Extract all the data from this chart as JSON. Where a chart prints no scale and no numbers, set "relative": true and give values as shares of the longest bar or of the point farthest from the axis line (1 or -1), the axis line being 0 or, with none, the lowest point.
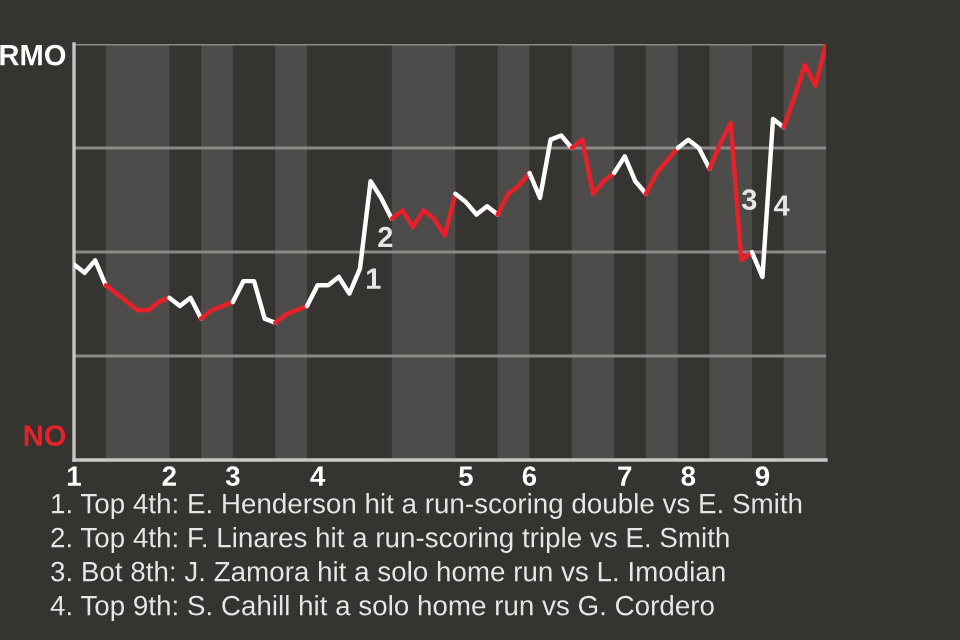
{
  "chart_data": {
    "type": "line",
    "relative": true,
    "grid": "y",
    "categories": [
      "1",
      null,
      null,
      null,
      null,
      null,
      null,
      null,
      null,
      "2",
      null,
      null,
      null,
      null,
      null,
      "3",
      null,
      null,
      null,
      null,
      null,
      null,
      null,
      "4",
      null,
      null,
      null,
      null,
      null,
      null,
      null,
      null,
      null,
      null,
      null,
      null,
      null,
      "5",
      null,
      null,
      null,
      null,
      null,
      "6",
      null,
      null,
      null,
      null,
      null,
      null,
      null,
      null,
      "7",
      null,
      null,
      null,
      null,
      null,
      "8",
      null,
      null,
      null,
      null,
      null,
      null,
      "9",
      null,
      null,
      null,
      null,
      null,
      null
    ],
    "series": [
      {
        "name": "RMO",
        "color": "#ffffff",
        "values": [
          0.47,
          0.45,
          0.48,
          0.42,
          null,
          null,
          null,
          null,
          null,
          null,
          null,
          null,
          null,
          null,
          null,
          null,
          null,
          null,
          null,
          null,
          null,
          null,
          null,
          null,
          null,
          null,
          null,
          null,
          null,
          null,
          null,
          null,
          null,
          null,
          null,
          null,
          null,
          null,
          null,
          null,
          null,
          null,
          null,
          null,
          null,
          null,
          null,
          null,
          null,
          null,
          null,
          null,
          null,
          null,
          null,
          null,
          null,
          null,
          null,
          null,
          null,
          null,
          null,
          null,
          null,
          null,
          null,
          null,
          null,
          null,
          null,
          null
        ]
      },
      {
        "name": "NO",
        "color": "#e8202a",
        "values": [
          null,
          null,
          null,
          0.42,
          0.4,
          0.38,
          0.36,
          0.36,
          0.38,
          0.39,
          null,
          null,
          null,
          null,
          null,
          null,
          null,
          null,
          null,
          null,
          null,
          null,
          null,
          null,
          null,
          null,
          null,
          null,
          null,
          null,
          null,
          null,
          null,
          null,
          null,
          null,
          null,
          null,
          null,
          null,
          null,
          null,
          null,
          null,
          null,
          null,
          null,
          null,
          null,
          null,
          null,
          null,
          null,
          null,
          null,
          null,
          null,
          null,
          null,
          null,
          null,
          null,
          null,
          null,
          null,
          null,
          null,
          null,
          null,
          null,
          null,
          null
        ]
      },
      {
        "color": "#ffffff",
        "values": [
          null,
          null,
          null,
          null,
          null,
          null,
          null,
          null,
          null,
          0.39,
          0.37,
          0.39,
          0.34,
          null,
          null,
          null,
          null,
          null,
          null,
          null,
          null,
          null,
          null,
          null,
          null,
          null,
          null,
          null,
          null,
          null,
          null,
          null,
          null,
          null,
          null,
          null,
          null,
          null,
          null,
          null,
          null,
          null,
          null,
          null,
          null,
          null,
          null,
          null,
          null,
          null,
          null,
          null,
          null,
          null,
          null,
          null,
          null,
          null,
          null,
          null,
          null,
          null,
          null,
          null,
          null,
          null,
          null,
          null,
          null,
          null,
          null,
          null
        ]
      },
      {
        "color": "#e8202a",
        "values": [
          null,
          null,
          null,
          null,
          null,
          null,
          null,
          null,
          null,
          null,
          null,
          null,
          0.34,
          0.36,
          0.37,
          0.38,
          null,
          null,
          null,
          null,
          null,
          null,
          null,
          null,
          null,
          null,
          null,
          null,
          null,
          null,
          null,
          null,
          null,
          null,
          null,
          null,
          null,
          null,
          null,
          null,
          null,
          null,
          null,
          null,
          null,
          null,
          null,
          null,
          null,
          null,
          null,
          null,
          null,
          null,
          null,
          null,
          null,
          null,
          null,
          null,
          null,
          null,
          null,
          null,
          null,
          null,
          null,
          null,
          null,
          null,
          null,
          null
        ]
      },
      {
        "color": "#ffffff",
        "values": [
          null,
          null,
          null,
          null,
          null,
          null,
          null,
          null,
          null,
          null,
          null,
          null,
          null,
          null,
          null,
          0.38,
          0.43,
          0.43,
          0.34,
          0.33,
          null,
          null,
          null,
          null,
          null,
          null,
          null,
          null,
          null,
          null,
          null,
          null,
          null,
          null,
          null,
          null,
          null,
          null,
          null,
          null,
          null,
          null,
          null,
          null,
          null,
          null,
          null,
          null,
          null,
          null,
          null,
          null,
          null,
          null,
          null,
          null,
          null,
          null,
          null,
          null,
          null,
          null,
          null,
          null,
          null,
          null,
          null,
          null,
          null,
          null,
          null,
          null
        ]
      },
      {
        "color": "#e8202a",
        "values": [
          null,
          null,
          null,
          null,
          null,
          null,
          null,
          null,
          null,
          null,
          null,
          null,
          null,
          null,
          null,
          null,
          null,
          null,
          null,
          0.33,
          0.35,
          0.36,
          0.37,
          null,
          null,
          null,
          null,
          null,
          null,
          null,
          null,
          null,
          null,
          null,
          null,
          null,
          null,
          null,
          null,
          null,
          null,
          null,
          null,
          null,
          null,
          null,
          null,
          null,
          null,
          null,
          null,
          null,
          null,
          null,
          null,
          null,
          null,
          null,
          null,
          null,
          null,
          null,
          null,
          null,
          null,
          null,
          null,
          null,
          null,
          null,
          null,
          null
        ]
      },
      {
        "color": "#ffffff",
        "values": [
          null,
          null,
          null,
          null,
          null,
          null,
          null,
          null,
          null,
          null,
          null,
          null,
          null,
          null,
          null,
          null,
          null,
          null,
          null,
          null,
          null,
          null,
          0.37,
          0.42,
          0.42,
          0.44,
          0.4,
          0.46,
          0.67,
          0.63,
          0.58,
          null,
          null,
          null,
          null,
          null,
          null,
          null,
          null,
          null,
          null,
          null,
          null,
          null,
          null,
          null,
          null,
          null,
          null,
          null,
          null,
          null,
          null,
          null,
          null,
          null,
          null,
          null,
          null,
          null,
          null,
          null,
          null,
          null,
          null,
          null,
          null,
          null,
          null,
          null,
          null,
          null
        ]
      },
      {
        "color": "#e8202a",
        "values": [
          null,
          null,
          null,
          null,
          null,
          null,
          null,
          null,
          null,
          null,
          null,
          null,
          null,
          null,
          null,
          null,
          null,
          null,
          null,
          null,
          null,
          null,
          null,
          null,
          null,
          null,
          null,
          null,
          null,
          null,
          0.58,
          0.6,
          0.56,
          0.6,
          0.58,
          0.54,
          0.64,
          null,
          null,
          null,
          null,
          null,
          null,
          null,
          null,
          null,
          null,
          null,
          null,
          null,
          null,
          null,
          null,
          null,
          null,
          null,
          null,
          null,
          null,
          null,
          null,
          null,
          null,
          null,
          null,
          null,
          null,
          null,
          null,
          null,
          null,
          null
        ]
      },
      {
        "color": "#ffffff",
        "values": [
          null,
          null,
          null,
          null,
          null,
          null,
          null,
          null,
          null,
          null,
          null,
          null,
          null,
          null,
          null,
          null,
          null,
          null,
          null,
          null,
          null,
          null,
          null,
          null,
          null,
          null,
          null,
          null,
          null,
          null,
          null,
          null,
          null,
          null,
          null,
          null,
          0.64,
          0.62,
          0.59,
          0.61,
          0.59,
          null,
          null,
          null,
          null,
          null,
          null,
          null,
          null,
          null,
          null,
          null,
          null,
          null,
          null,
          null,
          null,
          null,
          null,
          null,
          null,
          null,
          null,
          null,
          null,
          null,
          null,
          null,
          null,
          null,
          null,
          null
        ]
      },
      {
        "color": "#e8202a",
        "values": [
          null,
          null,
          null,
          null,
          null,
          null,
          null,
          null,
          null,
          null,
          null,
          null,
          null,
          null,
          null,
          null,
          null,
          null,
          null,
          null,
          null,
          null,
          null,
          null,
          null,
          null,
          null,
          null,
          null,
          null,
          null,
          null,
          null,
          null,
          null,
          null,
          null,
          null,
          null,
          null,
          0.59,
          0.64,
          0.66,
          0.69,
          null,
          null,
          null,
          null,
          null,
          null,
          null,
          null,
          null,
          null,
          null,
          null,
          null,
          null,
          null,
          null,
          null,
          null,
          null,
          null,
          null,
          null,
          null,
          null,
          null,
          null,
          null,
          null
        ]
      },
      {
        "color": "#ffffff",
        "values": [
          null,
          null,
          null,
          null,
          null,
          null,
          null,
          null,
          null,
          null,
          null,
          null,
          null,
          null,
          null,
          null,
          null,
          null,
          null,
          null,
          null,
          null,
          null,
          null,
          null,
          null,
          null,
          null,
          null,
          null,
          null,
          null,
          null,
          null,
          null,
          null,
          null,
          null,
          null,
          null,
          null,
          null,
          null,
          0.69,
          0.63,
          0.77,
          0.78,
          0.75,
          null,
          null,
          null,
          null,
          null,
          null,
          null,
          null,
          null,
          null,
          null,
          null,
          null,
          null,
          null,
          null,
          null,
          null,
          null,
          null,
          null,
          null,
          null,
          null
        ]
      },
      {
        "color": "#e8202a",
        "values": [
          null,
          null,
          null,
          null,
          null,
          null,
          null,
          null,
          null,
          null,
          null,
          null,
          null,
          null,
          null,
          null,
          null,
          null,
          null,
          null,
          null,
          null,
          null,
          null,
          null,
          null,
          null,
          null,
          null,
          null,
          null,
          null,
          null,
          null,
          null,
          null,
          null,
          null,
          null,
          null,
          null,
          null,
          null,
          null,
          null,
          null,
          null,
          0.75,
          0.77,
          0.64,
          0.67,
          0.69,
          null,
          null,
          null,
          null,
          null,
          null,
          null,
          null,
          null,
          null,
          null,
          null,
          null,
          null,
          null,
          null,
          null,
          null,
          null,
          null
        ]
      },
      {
        "color": "#ffffff",
        "values": [
          null,
          null,
          null,
          null,
          null,
          null,
          null,
          null,
          null,
          null,
          null,
          null,
          null,
          null,
          null,
          null,
          null,
          null,
          null,
          null,
          null,
          null,
          null,
          null,
          null,
          null,
          null,
          null,
          null,
          null,
          null,
          null,
          null,
          null,
          null,
          null,
          null,
          null,
          null,
          null,
          null,
          null,
          null,
          null,
          null,
          null,
          null,
          null,
          null,
          null,
          null,
          0.69,
          0.73,
          0.67,
          0.64,
          null,
          null,
          null,
          null,
          null,
          null,
          null,
          null,
          null,
          null,
          null,
          null,
          null,
          null,
          null,
          null,
          null
        ]
      },
      {
        "color": "#e8202a",
        "values": [
          null,
          null,
          null,
          null,
          null,
          null,
          null,
          null,
          null,
          null,
          null,
          null,
          null,
          null,
          null,
          null,
          null,
          null,
          null,
          null,
          null,
          null,
          null,
          null,
          null,
          null,
          null,
          null,
          null,
          null,
          null,
          null,
          null,
          null,
          null,
          null,
          null,
          null,
          null,
          null,
          null,
          null,
          null,
          null,
          null,
          null,
          null,
          null,
          null,
          null,
          null,
          null,
          null,
          null,
          0.64,
          0.69,
          0.72,
          0.75,
          null,
          null,
          null,
          null,
          null,
          null,
          null,
          null,
          null,
          null,
          null,
          null,
          null,
          null
        ]
      },
      {
        "color": "#ffffff",
        "values": [
          null,
          null,
          null,
          null,
          null,
          null,
          null,
          null,
          null,
          null,
          null,
          null,
          null,
          null,
          null,
          null,
          null,
          null,
          null,
          null,
          null,
          null,
          null,
          null,
          null,
          null,
          null,
          null,
          null,
          null,
          null,
          null,
          null,
          null,
          null,
          null,
          null,
          null,
          null,
          null,
          null,
          null,
          null,
          null,
          null,
          null,
          null,
          null,
          null,
          null,
          null,
          null,
          null,
          null,
          null,
          null,
          null,
          0.75,
          0.77,
          0.75,
          0.7,
          null,
          null,
          null,
          null,
          null,
          null,
          null,
          null,
          null,
          null,
          null
        ]
      },
      {
        "color": "#e8202a",
        "values": [
          null,
          null,
          null,
          null,
          null,
          null,
          null,
          null,
          null,
          null,
          null,
          null,
          null,
          null,
          null,
          null,
          null,
          null,
          null,
          null,
          null,
          null,
          null,
          null,
          null,
          null,
          null,
          null,
          null,
          null,
          null,
          null,
          null,
          null,
          null,
          null,
          null,
          null,
          null,
          null,
          null,
          null,
          null,
          null,
          null,
          null,
          null,
          null,
          null,
          null,
          null,
          null,
          null,
          null,
          null,
          null,
          null,
          null,
          null,
          null,
          0.7,
          0.76,
          0.81,
          0.48,
          0.5,
          null,
          null,
          null,
          null,
          null,
          null,
          null
        ]
      },
      {
        "color": "#ffffff",
        "values": [
          null,
          null,
          null,
          null,
          null,
          null,
          null,
          null,
          null,
          null,
          null,
          null,
          null,
          null,
          null,
          null,
          null,
          null,
          null,
          null,
          null,
          null,
          null,
          null,
          null,
          null,
          null,
          null,
          null,
          null,
          null,
          null,
          null,
          null,
          null,
          null,
          null,
          null,
          null,
          null,
          null,
          null,
          null,
          null,
          null,
          null,
          null,
          null,
          null,
          null,
          null,
          null,
          null,
          null,
          null,
          null,
          null,
          null,
          null,
          null,
          null,
          null,
          null,
          null,
          0.5,
          0.44,
          0.82,
          0.8,
          null,
          null,
          null,
          null
        ]
      },
      {
        "color": "#e8202a",
        "values": [
          null,
          null,
          null,
          null,
          null,
          null,
          null,
          null,
          null,
          null,
          null,
          null,
          null,
          null,
          null,
          null,
          null,
          null,
          null,
          null,
          null,
          null,
          null,
          null,
          null,
          null,
          null,
          null,
          null,
          null,
          null,
          null,
          null,
          null,
          null,
          null,
          null,
          null,
          null,
          null,
          null,
          null,
          null,
          null,
          null,
          null,
          null,
          null,
          null,
          null,
          null,
          null,
          null,
          null,
          null,
          null,
          null,
          null,
          null,
          null,
          null,
          null,
          null,
          null,
          null,
          null,
          null,
          0.8,
          0.87,
          0.95,
          0.9,
          1.0
        ]
      }
    ],
    "annotations": [
      "1",
      "2",
      "3",
      "4",
      "1. Top 4th: E. Henderson hit a run-scoring double vs E. Smith",
      "2. Top 4th: F. Linares hit a run-scoring triple vs E. Smith",
      "3. Bot 8th: J. Zamora hit a solo home run vs L. Imodian",
      "4. Top 9th: S. Cahill hit a solo home run vs G. Cordero"
    ]
  }
}
